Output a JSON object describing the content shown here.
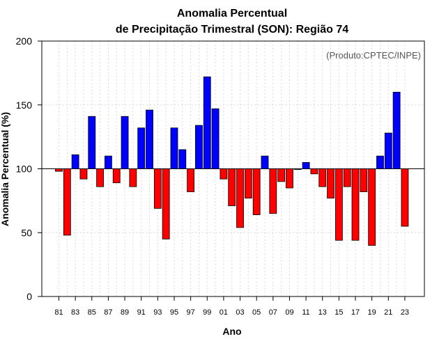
{
  "chart_data": {
    "type": "bar",
    "title_line1": "Anomalia Percentual",
    "title_line2": "de Precipitação Trimestral (SON): Região 74",
    "credit": "(Produto:CPTEC/INPE)",
    "xlabel": "Ano",
    "ylabel": "Anomalia Percentual (%)",
    "ylim": [
      0,
      200
    ],
    "yticks": [
      0,
      50,
      100,
      150,
      200
    ],
    "baseline": 100,
    "grid": true,
    "colors": {
      "above": "#0000ff",
      "below": "#ff0000",
      "edge": "#000000",
      "grid": "#d9d9d9"
    },
    "x_tick_labels": [
      "81",
      "83",
      "85",
      "87",
      "89",
      "91",
      "93",
      "95",
      "97",
      "99",
      "01",
      "03",
      "05",
      "07",
      "09",
      "11",
      "13",
      "15",
      "17",
      "19",
      "21",
      "23"
    ],
    "categories": [
      "1981",
      "1982",
      "1983",
      "1984",
      "1985",
      "1986",
      "1987",
      "1988",
      "1989",
      "1990",
      "1991",
      "1992",
      "1993",
      "1994",
      "1995",
      "1996",
      "1997",
      "1998",
      "1999",
      "2000",
      "2001",
      "2002",
      "2003",
      "2004",
      "2005",
      "2006",
      "2007",
      "2008",
      "2009",
      "2010",
      "2011",
      "2012",
      "2013",
      "2014",
      "2015",
      "2016",
      "2017",
      "2018",
      "2019",
      "2020",
      "2021",
      "2022",
      "2023"
    ],
    "values": [
      98,
      48,
      111,
      92,
      141,
      86,
      110,
      89,
      141,
      86,
      132,
      146,
      69,
      45,
      132,
      115,
      82,
      134,
      172,
      147,
      92,
      71,
      54,
      77,
      64,
      110,
      65,
      90,
      85,
      100,
      105,
      96,
      86,
      77,
      44,
      86,
      44,
      82,
      40,
      110,
      128,
      160,
      55
    ]
  }
}
